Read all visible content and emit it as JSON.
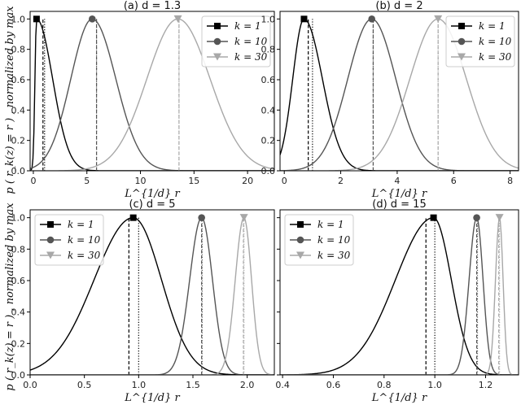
{
  "figure": {
    "ylabel": "p ( r_k(z) = r ) , normalized by max",
    "xlabel": "L^{1/d} r"
  },
  "colors": {
    "k1": "#000000",
    "k10": "#555555",
    "k30": "#a8a8a8",
    "axes": "#000000"
  },
  "chart_data": [
    {
      "type": "line",
      "panel": "(a)",
      "title": "(a)   d = 1.3",
      "xlim": [
        -0.3,
        22.5
      ],
      "ylim": [
        0,
        1.05
      ],
      "xticks": [
        0,
        5,
        10,
        15,
        20
      ],
      "yticks": [
        0.0,
        0.2,
        0.4,
        0.6,
        0.8,
        1.0
      ],
      "legend": "top-right",
      "series": [
        {
          "name": "k = 1",
          "color": "#000000",
          "marker": "square",
          "peak": 0.3,
          "width_left": 0.15,
          "width_right": 1.5,
          "dashed_x": 0.9,
          "dotted_x": 1.05
        },
        {
          "name": "k = 10",
          "color": "#555555",
          "marker": "circle",
          "peak": 5.5,
          "width_left": 2.0,
          "width_right": 2.2,
          "dashed_x": 5.9,
          "dotted_x": 5.9
        },
        {
          "name": "k = 30",
          "color": "#a8a8a8",
          "marker": "triangle",
          "peak": 13.5,
          "width_left": 2.9,
          "width_right": 3.0,
          "dashed_x": 13.6,
          "dotted_x": 13.6
        }
      ]
    },
    {
      "type": "line",
      "panel": "(b)",
      "title": "(b)   d = 2",
      "xlim": [
        -0.15,
        8.3
      ],
      "ylim": [
        0,
        1.05
      ],
      "xticks": [
        0,
        2,
        4,
        6,
        8
      ],
      "yticks": [
        0.0,
        0.2,
        0.4,
        0.6,
        0.8,
        1.0
      ],
      "legend": "top-right",
      "series": [
        {
          "name": "k = 1",
          "color": "#000000",
          "marker": "square",
          "peak": 0.7,
          "width_left": 0.4,
          "width_right": 0.65,
          "dashed_x": 0.85,
          "dotted_x": 1.0
        },
        {
          "name": "k = 10",
          "color": "#555555",
          "marker": "circle",
          "peak": 3.1,
          "width_left": 0.85,
          "width_right": 0.85,
          "dashed_x": 3.15,
          "dotted_x": 3.15
        },
        {
          "name": "k = 30",
          "color": "#a8a8a8",
          "marker": "triangle",
          "peak": 5.45,
          "width_left": 1.0,
          "width_right": 1.0,
          "dashed_x": 5.45,
          "dotted_x": 5.45
        }
      ]
    },
    {
      "type": "line",
      "panel": "(c)",
      "title": "(c)   d = 5",
      "xlim": [
        0.0,
        2.25
      ],
      "ylim": [
        0,
        1.05
      ],
      "xticks": [
        0.0,
        0.5,
        1.0,
        1.5,
        2.0
      ],
      "yticks": [
        0.0,
        0.2,
        0.4,
        0.6,
        0.8,
        1.0
      ],
      "legend": "top-left",
      "series": [
        {
          "name": "k = 1",
          "color": "#000000",
          "marker": "square",
          "peak": 0.95,
          "width_left": 0.36,
          "width_right": 0.26,
          "dashed_x": 0.91,
          "dotted_x": 1.0
        },
        {
          "name": "k = 10",
          "color": "#555555",
          "marker": "circle",
          "peak": 1.58,
          "width_left": 0.11,
          "width_right": 0.1,
          "dashed_x": 1.58,
          "dotted_x": 1.585
        },
        {
          "name": "k = 30",
          "color": "#a8a8a8",
          "marker": "triangle",
          "peak": 1.97,
          "width_left": 0.08,
          "width_right": 0.07,
          "dashed_x": 1.965,
          "dotted_x": 1.97
        }
      ]
    },
    {
      "type": "line",
      "panel": "(d)",
      "title": "(d)   d = 15",
      "xlim": [
        0.39,
        1.33
      ],
      "ylim": [
        0,
        1.05
      ],
      "xticks": [
        0.4,
        0.6,
        0.8,
        1.0,
        1.2
      ],
      "yticks": [
        0.0,
        0.2,
        0.4,
        0.6,
        0.8,
        1.0
      ],
      "legend": "top-left",
      "series": [
        {
          "name": "k = 1",
          "color": "#000000",
          "marker": "square",
          "peak": 0.995,
          "width_left": 0.15,
          "width_right": 0.07,
          "dashed_x": 0.965,
          "dotted_x": 1.0
        },
        {
          "name": "k = 10",
          "color": "#555555",
          "marker": "circle",
          "peak": 1.165,
          "width_left": 0.03,
          "width_right": 0.025,
          "dashed_x": 1.165,
          "dotted_x": 1.168
        },
        {
          "name": "k = 30",
          "color": "#a8a8a8",
          "marker": "triangle",
          "peak": 1.255,
          "width_left": 0.016,
          "width_right": 0.014,
          "dashed_x": 1.252,
          "dotted_x": 1.255
        }
      ]
    }
  ]
}
